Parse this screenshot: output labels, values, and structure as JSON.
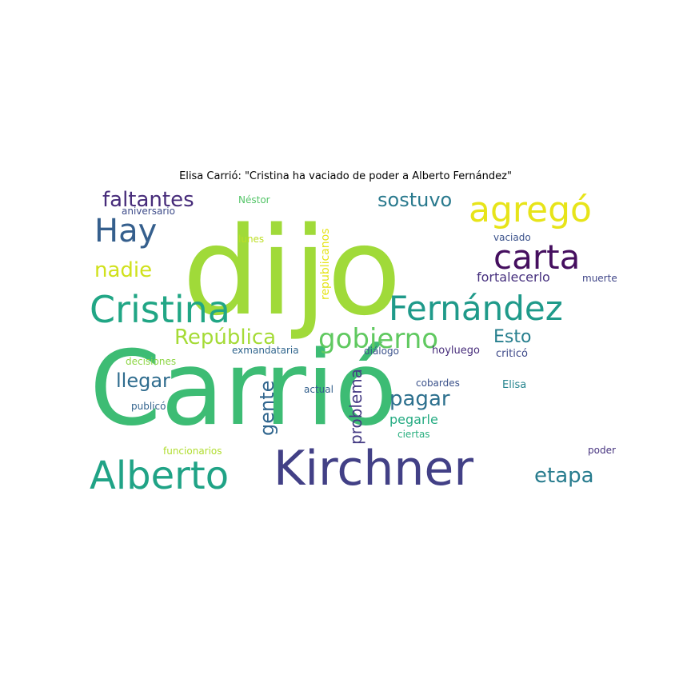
{
  "title": "Elisa Carrió: \"Cristina ha vaciado de poder a Alberto Fernández\"",
  "words": [
    {
      "text": "Carrió",
      "color": "#3dbc74"
    },
    {
      "text": "dijo",
      "color": "#a0da39"
    },
    {
      "text": "Kirchner",
      "color": "#424086"
    },
    {
      "text": "Cristina",
      "color": "#21a685"
    },
    {
      "text": "Fernández",
      "color": "#1f9a8a"
    },
    {
      "text": "Alberto",
      "color": "#20a386"
    },
    {
      "text": "agregó",
      "color": "#e7e419"
    },
    {
      "text": "carta",
      "color": "#450f5f"
    },
    {
      "text": "Hay",
      "color": "#355f8d"
    },
    {
      "text": "gobierno",
      "color": "#60c960"
    },
    {
      "text": "República",
      "color": "#a5db36"
    },
    {
      "text": "faltantes",
      "color": "#472c7a"
    },
    {
      "text": "sostuvo",
      "color": "#2a7a8e"
    },
    {
      "text": "nadie",
      "color": "#d0e11c"
    },
    {
      "text": "pagar",
      "color": "#2d708e"
    },
    {
      "text": "etapa",
      "color": "#287c8e"
    },
    {
      "text": "llegar",
      "color": "#2f6c8e"
    },
    {
      "text": "gente",
      "color": "#31668e"
    },
    {
      "text": "problema",
      "color": "#443a83"
    },
    {
      "text": "Esto",
      "color": "#277f8e"
    },
    {
      "text": "fortalecerlo",
      "color": "#46307e"
    },
    {
      "text": "republicanos",
      "color": "#e5e419"
    },
    {
      "text": "pegarle",
      "color": "#25ab82"
    },
    {
      "text": "vaciado",
      "color": "#3b528b"
    },
    {
      "text": "muerte",
      "color": "#404688"
    },
    {
      "text": "Néstor",
      "color": "#54c568"
    },
    {
      "text": "aniversario",
      "color": "#3e4c8a"
    },
    {
      "text": "lunes",
      "color": "#bddf26"
    },
    {
      "text": "decisiones",
      "color": "#8ed645"
    },
    {
      "text": "exmandataria",
      "color": "#31668e"
    },
    {
      "text": "diálogo",
      "color": "#3b528b"
    },
    {
      "text": "hoyluego",
      "color": "#472d7b"
    },
    {
      "text": "criticó",
      "color": "#3e4989"
    },
    {
      "text": "cobardes",
      "color": "#3b528b"
    },
    {
      "text": "actual",
      "color": "#34608d"
    },
    {
      "text": "Elisa",
      "color": "#25848e"
    },
    {
      "text": "publicó",
      "color": "#33638d"
    },
    {
      "text": "ciertas",
      "color": "#29af7f"
    },
    {
      "text": "funcionarios",
      "color": "#b0dd2f"
    },
    {
      "text": "poder",
      "color": "#46337f"
    }
  ]
}
